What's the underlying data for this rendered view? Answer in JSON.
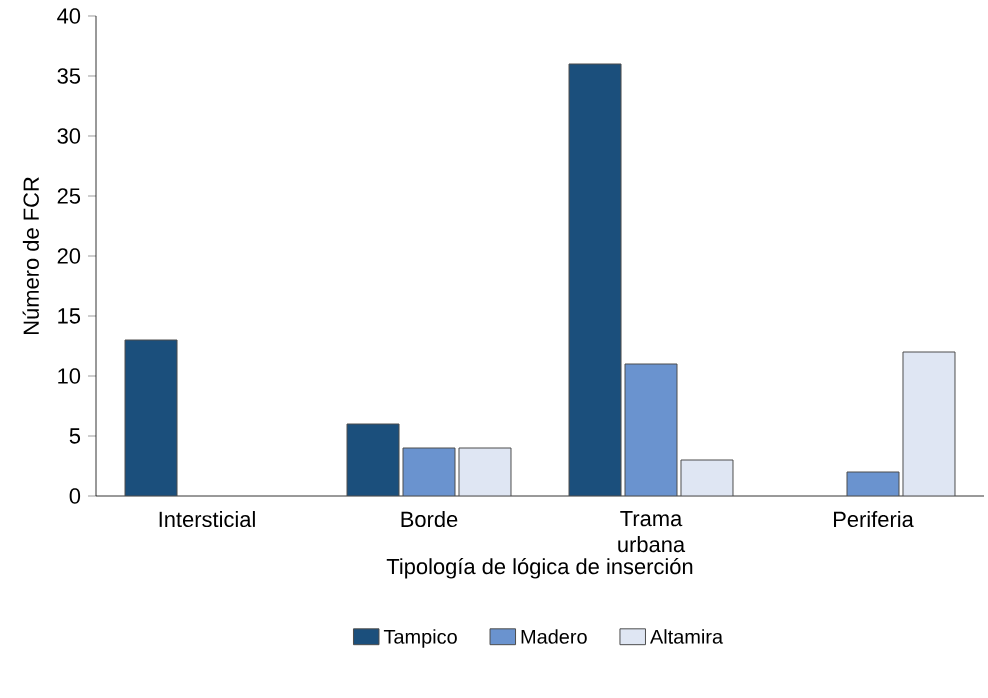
{
  "chart_data": {
    "type": "bar",
    "xlabel": "Tipología de lógica de inserción",
    "ylabel": "Número de FCR",
    "categories": [
      "Intersticial",
      "Borde",
      "Trama urbana",
      "Periferia"
    ],
    "series": [
      {
        "name": "Tampico",
        "color": "#1b4f7c",
        "values": [
          13,
          6,
          36,
          null
        ]
      },
      {
        "name": "Madero",
        "color": "#6a93cf",
        "values": [
          null,
          4,
          11,
          2
        ]
      },
      {
        "name": "Altamira",
        "color": "#dfe6f3",
        "values": [
          null,
          4,
          3,
          12
        ]
      }
    ],
    "ylim": [
      0,
      40
    ],
    "yticks": [
      0,
      5,
      10,
      15,
      20,
      25,
      30,
      35,
      40
    ],
    "grid": false,
    "legend": "bottom"
  }
}
